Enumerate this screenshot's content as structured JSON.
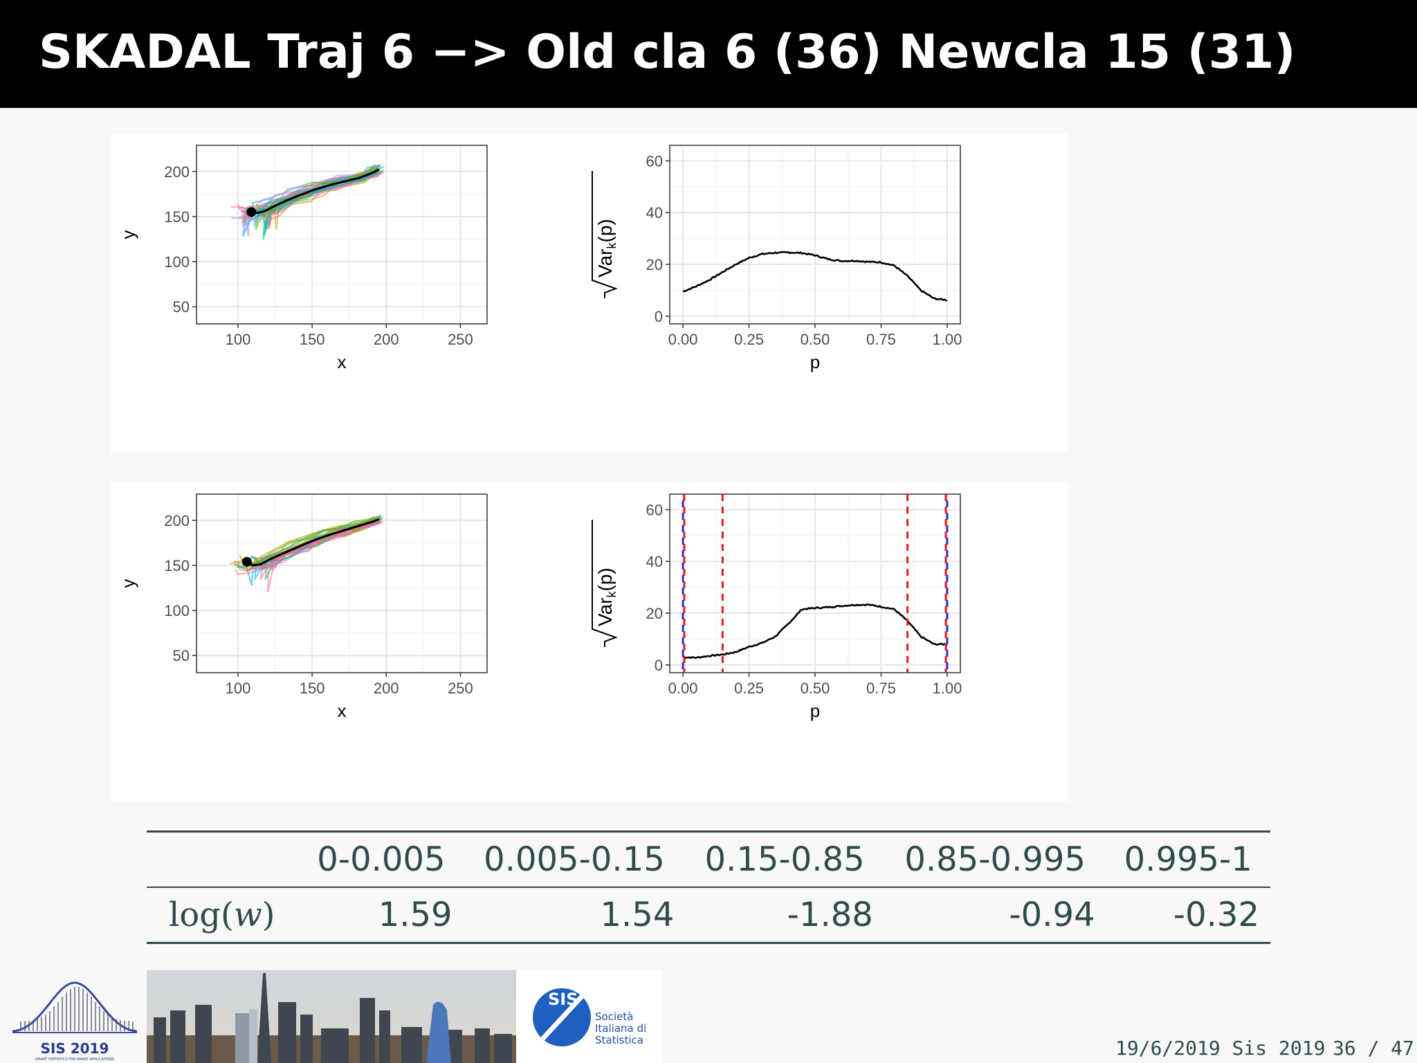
{
  "slide": {
    "title": "SKADAL Traj 6 −> Old cla 6 (36) Newcla 15 (31)",
    "footer_date": "19/6/2019 Sis 2019",
    "footer_page": "36 / 47"
  },
  "logos": {
    "sis2019_text": "SIS 2019",
    "sis2019_tagline": "SMART STATISTICS FOR SMART APPLICATIONS",
    "sis_text": "SIS",
    "sis_name_lines": [
      "Società",
      "Italiana di",
      "Statistica"
    ]
  },
  "colors": {
    "trajectory_palette": [
      "#f8766d",
      "#e7861b",
      "#c49a00",
      "#a3a500",
      "#53b400",
      "#00bc56",
      "#00c094",
      "#00b6eb",
      "#06a4ff",
      "#a58aff",
      "#df70f8",
      "#fb61d7",
      "#ff66a8"
    ],
    "mean_line": "#000000",
    "boundary_red": "#e41a1c",
    "boundary_blue": "#2b2bcc"
  },
  "chart_data": [
    {
      "id": "traj-top",
      "type": "line",
      "title": "",
      "xlabel": "x",
      "ylabel": "y",
      "xlim": [
        72,
        268
      ],
      "ylim": [
        31,
        229
      ],
      "xticks": [
        100,
        150,
        200,
        250
      ],
      "yticks": [
        50,
        100,
        150,
        200
      ],
      "grid": true,
      "n_trajectories": 36,
      "start_point": {
        "x": 109,
        "y": 155
      },
      "mean_trajectory": {
        "x": [
          109,
          113,
          118,
          125,
          133,
          142,
          152,
          162,
          172,
          182,
          190,
          195
        ],
        "y": [
          155,
          154,
          156,
          162,
          168,
          174,
          180,
          185,
          189,
          193,
          198,
          202
        ]
      }
    },
    {
      "id": "var-top",
      "type": "line",
      "title": "",
      "xlabel": "p",
      "ylabel": "√Var_k(p)",
      "xlim": [
        -0.05,
        1.05
      ],
      "ylim": [
        -3,
        66
      ],
      "xticks": [
        "0.00",
        "0.25",
        "0.50",
        "0.75",
        "1.00"
      ],
      "yticks": [
        0,
        20,
        40,
        60
      ],
      "grid": true,
      "series": [
        {
          "x": [
            0,
            0.05,
            0.1,
            0.15,
            0.2,
            0.25,
            0.3,
            0.35,
            0.4,
            0.45,
            0.5,
            0.55,
            0.6,
            0.65,
            0.7,
            0.75,
            0.8,
            0.85,
            0.9,
            0.95,
            1.0
          ],
          "y": [
            9.5,
            11.5,
            14,
            17,
            20,
            22.5,
            24,
            24.5,
            24.6,
            24.4,
            23.5,
            22,
            21.3,
            21.4,
            21,
            20.8,
            19.5,
            15.5,
            10,
            6.8,
            6.2
          ]
        }
      ]
    },
    {
      "id": "traj-bottom",
      "type": "line",
      "title": "",
      "xlabel": "x",
      "ylabel": "y",
      "xlim": [
        72,
        268
      ],
      "ylim": [
        31,
        229
      ],
      "xticks": [
        100,
        150,
        200,
        250
      ],
      "yticks": [
        50,
        100,
        150,
        200
      ],
      "grid": true,
      "n_trajectories": 31,
      "start_point": {
        "x": 106,
        "y": 154
      },
      "mean_trajectory": {
        "x": [
          106,
          110,
          115,
          122,
          130,
          140,
          150,
          160,
          170,
          180,
          190,
          195
        ],
        "y": [
          154,
          150,
          151,
          157,
          163,
          170,
          177,
          183,
          188,
          193,
          198,
          201
        ]
      }
    },
    {
      "id": "var-bottom",
      "type": "line",
      "title": "",
      "xlabel": "p",
      "ylabel": "√Var_k(p)",
      "xlim": [
        -0.05,
        1.05
      ],
      "ylim": [
        -3,
        66
      ],
      "xticks": [
        "0.00",
        "0.25",
        "0.50",
        "0.75",
        "1.00"
      ],
      "yticks": [
        0,
        20,
        40,
        60
      ],
      "grid": true,
      "red_dashed_vlines": [
        0.005,
        0.15,
        0.85,
        0.995
      ],
      "blue_dashed_vlines": [
        0.0,
        1.0
      ],
      "series": [
        {
          "x": [
            0,
            0.05,
            0.1,
            0.15,
            0.2,
            0.25,
            0.3,
            0.35,
            0.4,
            0.45,
            0.5,
            0.55,
            0.6,
            0.65,
            0.7,
            0.75,
            0.8,
            0.85,
            0.9,
            0.95,
            1.0
          ],
          "y": [
            3,
            2.8,
            3.5,
            4,
            5,
            7,
            8.5,
            11,
            16,
            21.5,
            22,
            22.3,
            22.8,
            23.2,
            23.3,
            22.5,
            21.5,
            17,
            11,
            8,
            8
          ]
        }
      ]
    }
  ],
  "table": {
    "headers": [
      "",
      "0-0.005",
      "0.005-0.15",
      "0.15-0.85",
      "0.85-0.995",
      "0.995-1"
    ],
    "rows": [
      {
        "label": "log(w)",
        "values": [
          "1.59",
          "1.54",
          "-1.88",
          "-0.94",
          "-0.32"
        ]
      }
    ]
  }
}
